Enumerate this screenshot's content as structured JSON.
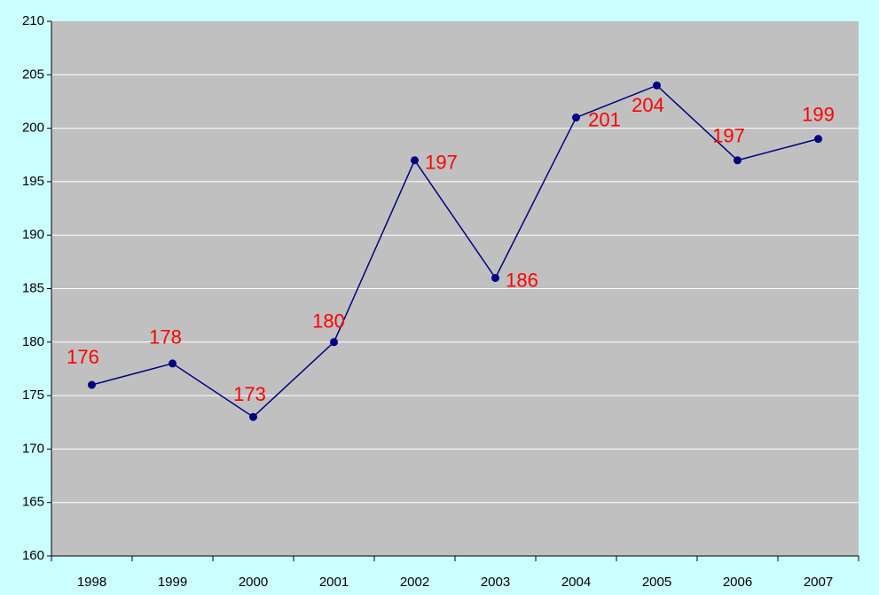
{
  "chart_data": {
    "type": "line",
    "categories": [
      "1998",
      "1999",
      "2000",
      "2001",
      "2002",
      "2003",
      "2004",
      "2005",
      "2006",
      "2007"
    ],
    "series": [
      {
        "color": "#000080",
        "values": [
          176,
          178,
          173,
          180,
          197,
          186,
          201,
          204,
          197,
          199
        ]
      }
    ],
    "label_color": "#ff0000",
    "ylim": [
      160,
      210
    ],
    "yticks": [
      160,
      165,
      170,
      175,
      180,
      185,
      190,
      195,
      200,
      205,
      210
    ],
    "grid": true
  }
}
